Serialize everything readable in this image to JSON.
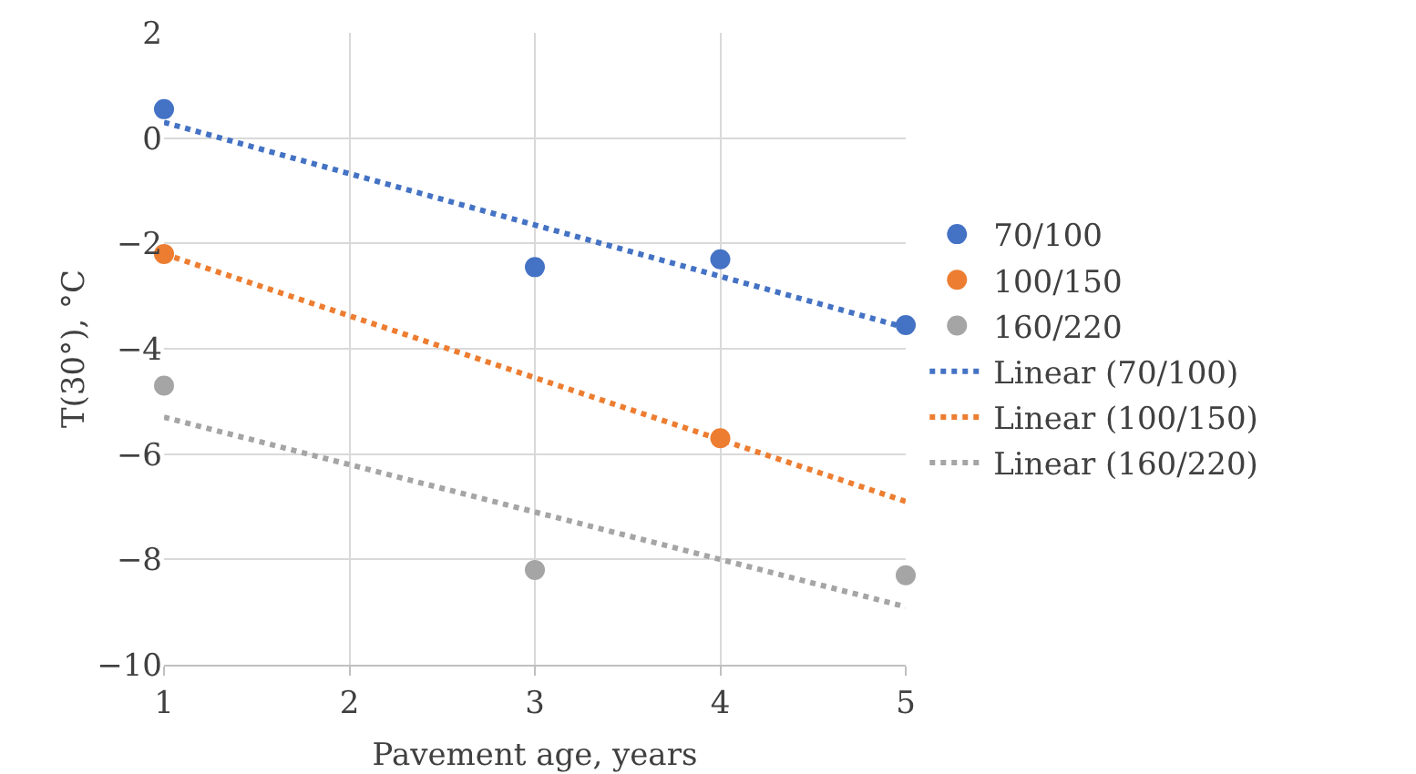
{
  "chart_data": {
    "type": "scatter",
    "xlabel": "Pavement age, years",
    "ylabel": "T(30°), °C",
    "xlim": [
      1,
      5
    ],
    "xticks": [
      1,
      2,
      3,
      4,
      5
    ],
    "ylim": [
      -10,
      2
    ],
    "yticks": [
      {
        "value": -10,
        "label": "−10"
      },
      {
        "value": -8,
        "label": "−8"
      },
      {
        "value": -6,
        "label": "−6"
      },
      {
        "value": -4,
        "label": "−4"
      },
      {
        "value": -2,
        "label": "−2"
      },
      0,
      2
    ],
    "grid": true,
    "legend": "right",
    "marker": "circle",
    "series": [
      {
        "name": "70/100",
        "color": "#4472c4",
        "x": [
          1,
          3,
          4,
          5
        ],
        "values": [
          0.55,
          -2.45,
          -2.3,
          -3.55
        ]
      },
      {
        "name": "100/150",
        "color": "#ed7d31",
        "x": [
          1,
          4
        ],
        "values": [
          -2.2,
          -5.7
        ]
      },
      {
        "name": "160/220",
        "color": "#a5a5a5",
        "x": [
          1,
          3,
          5
        ],
        "values": [
          -4.7,
          -8.2,
          -8.3
        ]
      },
      {
        "name": "Linear (70/100)",
        "type": "line",
        "line_style": "dotted",
        "marker": "none",
        "color": "#4472c4",
        "x": [
          1,
          5
        ],
        "values": [
          0.3,
          -3.6
        ]
      },
      {
        "name": "Linear (100/150)",
        "type": "line",
        "line_style": "dotted",
        "marker": "none",
        "color": "#ed7d31",
        "x": [
          1,
          5
        ],
        "values": [
          -2.2,
          -6.9
        ]
      },
      {
        "name": "Linear (160/220)",
        "type": "line",
        "line_style": "dotted",
        "marker": "none",
        "color": "#a5a5a5",
        "x": [
          1,
          5
        ],
        "values": [
          -5.3,
          -8.9
        ]
      }
    ]
  }
}
